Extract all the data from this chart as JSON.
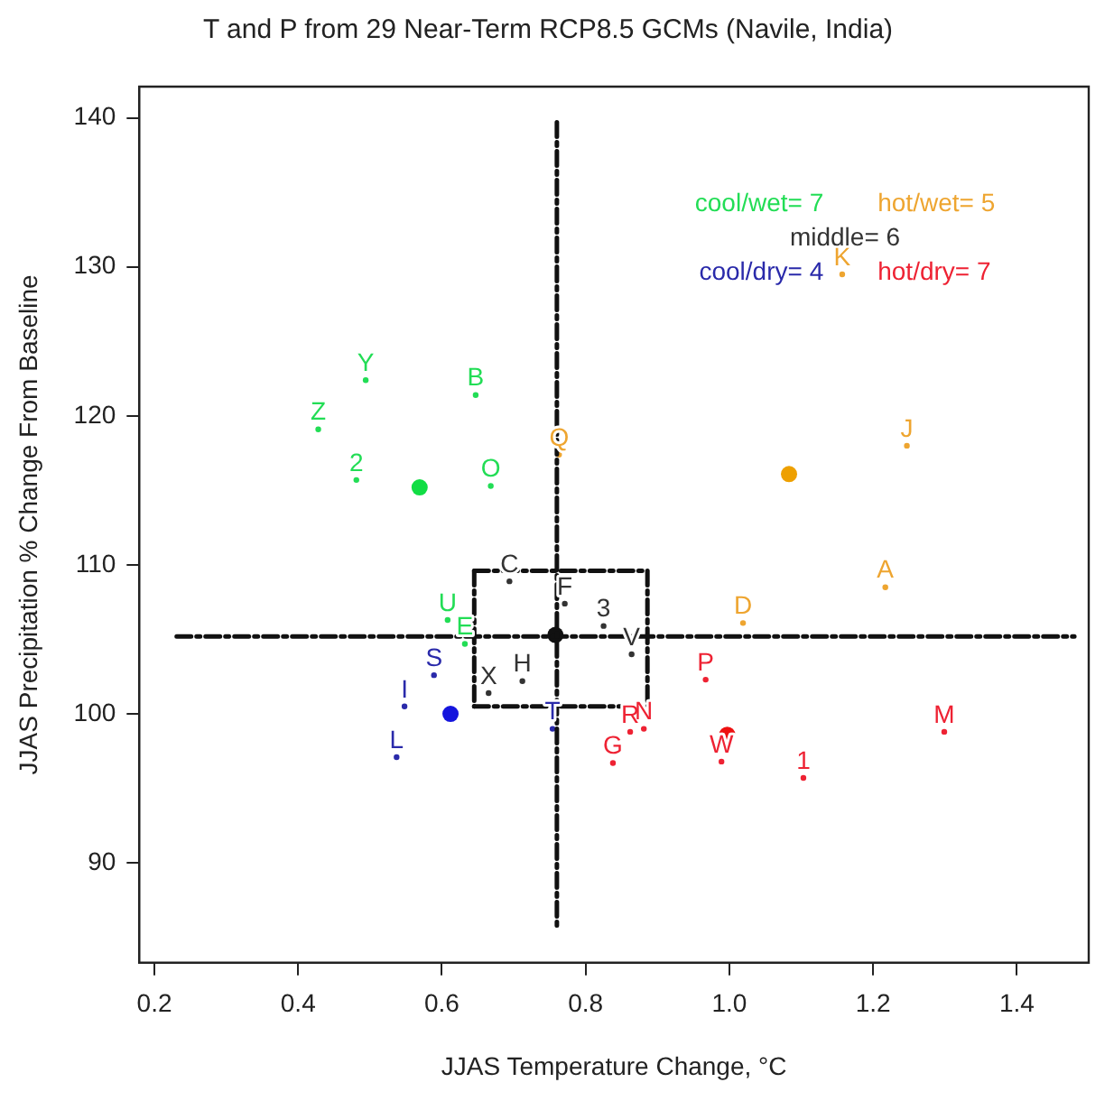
{
  "chart_data": {
    "type": "scatter",
    "title": "T and P from 29 Near-Term RCP8.5 GCMs (Navile, India)",
    "xlabel": "JJAS Temperature Change, °C",
    "ylabel": "JJAS Precipitation % Change From Baseline",
    "xlim": [
      0.179,
      1.5
    ],
    "ylim": [
      83.3,
      142.1
    ],
    "xticks": [
      0.2,
      0.4,
      0.6,
      0.8,
      {
        "value": 1,
        "label": "1.0"
      },
      1.2,
      1.4
    ],
    "yticks": [
      90,
      100,
      110,
      120,
      130,
      140
    ],
    "grid": false,
    "series": [
      {
        "type": "line",
        "color": "#111111",
        "line_style": "dashed",
        "x": [
          0.76,
          0.76
        ],
        "values": [
          139.7,
          85.5
        ]
      },
      {
        "type": "line",
        "color": "#111111",
        "line_style": "dashed",
        "x": [
          0.231,
          1.48
        ],
        "values": [
          105.2,
          105.2
        ]
      },
      {
        "type": "line",
        "color": "#111111",
        "line_style": "dashed",
        "x": [
          0.645,
          0.886
        ],
        "values": [
          109.6,
          109.6
        ]
      },
      {
        "type": "line",
        "color": "#111111",
        "line_style": "dashed",
        "x": [
          0.886,
          0.886
        ],
        "values": [
          109.6,
          100.5
        ]
      },
      {
        "type": "line",
        "color": "#111111",
        "line_style": "dashed",
        "x": [
          0.645,
          0.886
        ],
        "values": [
          100.5,
          100.5
        ]
      },
      {
        "type": "line",
        "color": "#111111",
        "line_style": "dashed",
        "x": [
          0.645,
          0.645
        ],
        "values": [
          109.6,
          100.5
        ]
      },
      {
        "name": "cool/wet= 7",
        "color": "#22dd55",
        "marker": "circle",
        "x": [
          0.494,
          0.428,
          0.647,
          0.481,
          0.668,
          0.608,
          0.632
        ],
        "values": [
          122.4,
          119.1,
          121.4,
          115.7,
          115.3,
          106.3,
          104.7
        ]
      },
      {
        "name": "hot/wet= 5",
        "color": "#eea530",
        "marker": "circle",
        "x": [
          0.763,
          1.157,
          1.247,
          1.019,
          1.217
        ],
        "values": [
          117.4,
          129.5,
          118.0,
          106.1,
          108.5
        ]
      },
      {
        "name": "middle= 6",
        "color": "#333333",
        "marker": "circle",
        "x": [
          0.694,
          0.771,
          0.825,
          0.864,
          0.665,
          0.712
        ],
        "values": [
          108.9,
          107.4,
          105.9,
          104.0,
          101.4,
          102.2
        ]
      },
      {
        "name": "cool/dry= 4",
        "color": "#2a2aaa",
        "marker": "circle",
        "x": [
          0.589,
          0.548,
          0.537,
          0.754
        ],
        "values": [
          102.6,
          100.5,
          97.1,
          99.0
        ]
      },
      {
        "name": "hot/dry= 7",
        "color": "#ee2233",
        "marker": "circle",
        "x": [
          0.862,
          0.881,
          0.838,
          0.967,
          0.989,
          1.299,
          1.103
        ],
        "values": [
          98.8,
          99.0,
          96.7,
          102.3,
          96.8,
          98.8,
          95.7
        ]
      },
      {
        "marker": "circle",
        "colors": [
          "#11dd44",
          "#eea000",
          "#111111",
          "#1515dd",
          "#ee1111"
        ],
        "x": [
          0.569,
          1.083,
          0.758,
          0.612,
          0.997
        ],
        "values": [
          115.2,
          116.1,
          105.3,
          100.0,
          98.6
        ]
      }
    ],
    "annotations": [
      {
        "text": "Y",
        "x": 0.494,
        "y": 122.4
      },
      {
        "text": "Z",
        "x": 0.428,
        "y": 119.1
      },
      {
        "text": "B",
        "x": 0.647,
        "y": 121.4
      },
      {
        "text": "2",
        "x": 0.481,
        "y": 115.7
      },
      {
        "text": "O",
        "x": 0.668,
        "y": 115.3
      },
      {
        "text": "U",
        "x": 0.608,
        "y": 106.3
      },
      {
        "text": "E",
        "x": 0.632,
        "y": 104.7
      },
      {
        "text": "Q",
        "x": 0.763,
        "y": 117.4
      },
      {
        "text": "K",
        "x": 1.157,
        "y": 129.5
      },
      {
        "text": "J",
        "x": 1.247,
        "y": 118.0
      },
      {
        "text": "D",
        "x": 1.019,
        "y": 106.1
      },
      {
        "text": "A",
        "x": 1.217,
        "y": 108.5
      },
      {
        "text": "C",
        "x": 0.694,
        "y": 108.9
      },
      {
        "text": "F",
        "x": 0.771,
        "y": 107.4
      },
      {
        "text": "3",
        "x": 0.825,
        "y": 105.9
      },
      {
        "text": "V",
        "x": 0.864,
        "y": 104.0
      },
      {
        "text": "X",
        "x": 0.665,
        "y": 101.4
      },
      {
        "text": "H",
        "x": 0.712,
        "y": 102.2
      },
      {
        "text": "S",
        "x": 0.589,
        "y": 102.6
      },
      {
        "text": "I",
        "x": 0.548,
        "y": 100.5
      },
      {
        "text": "L",
        "x": 0.537,
        "y": 97.1
      },
      {
        "text": "T",
        "x": 0.754,
        "y": 99.0
      },
      {
        "text": "R",
        "x": 0.862,
        "y": 98.8
      },
      {
        "text": "N",
        "x": 0.881,
        "y": 99.0
      },
      {
        "text": "G",
        "x": 0.838,
        "y": 96.7
      },
      {
        "text": "P",
        "x": 0.967,
        "y": 102.3
      },
      {
        "text": "W",
        "x": 0.989,
        "y": 96.8
      },
      {
        "text": "M",
        "x": 1.299,
        "y": 98.8
      },
      {
        "text": "1",
        "x": 1.103,
        "y": 95.7
      }
    ]
  }
}
